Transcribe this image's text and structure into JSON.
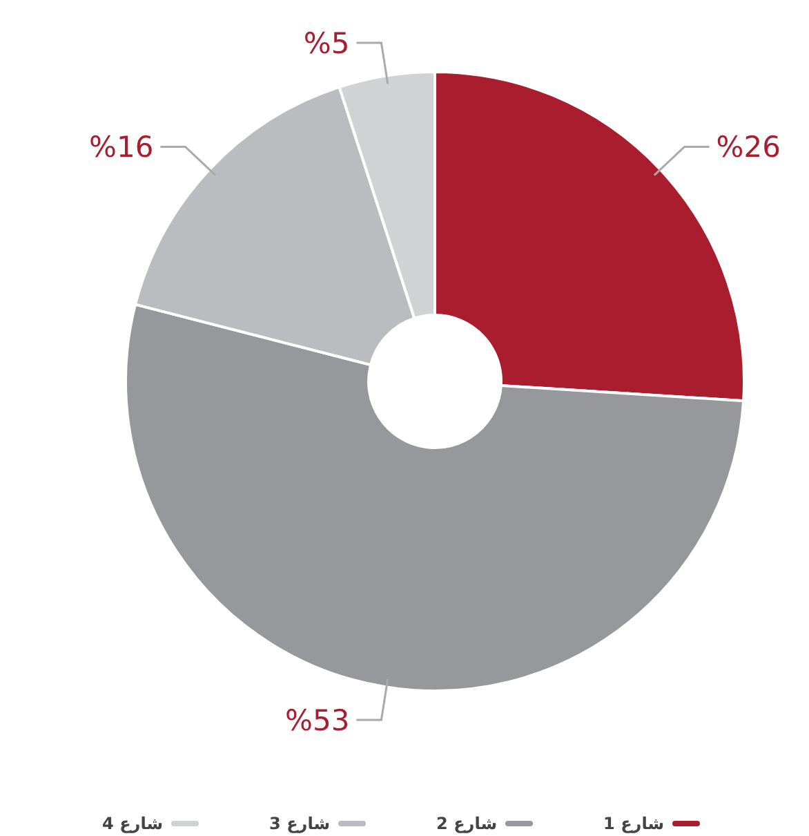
{
  "chart_data": {
    "type": "donut",
    "categories": [
      "شارع 1",
      "شارع 2",
      "شارع 3",
      "شارع 4"
    ],
    "values": [
      26,
      53,
      16,
      5
    ],
    "colors": [
      "#a91d2e",
      "#97989c",
      "#bbbcc0",
      "#d1d2d4"
    ],
    "value_labels": [
      "%26",
      "%53",
      "%16",
      "%5"
    ],
    "legend": "bottom"
  }
}
